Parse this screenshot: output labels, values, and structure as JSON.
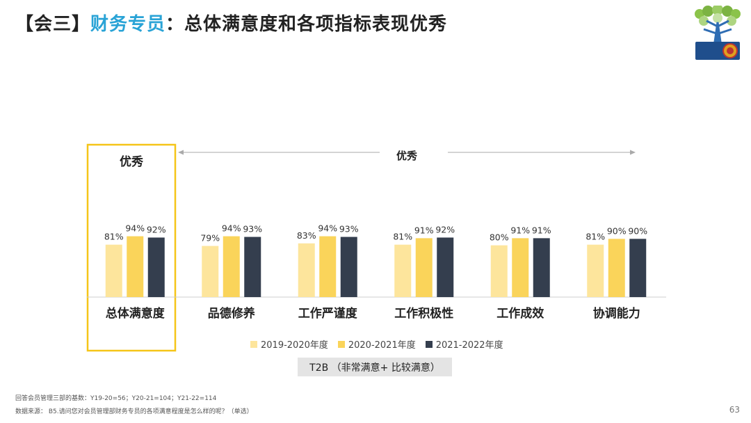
{
  "slide": {
    "title_prefix": "【会三】",
    "title_highlight": "财务专员",
    "title_rest": "：总体满意度和各项指标表现优秀",
    "page_number": "63"
  },
  "colors": {
    "title_highlight": "#29a3d6",
    "overall_box_border": "#f5c518",
    "t2b_bg": "#e4e4e4"
  },
  "annotations": {
    "overall_label": "优秀",
    "span_label": "优秀"
  },
  "t2b_label": "T2B （非常满意+ 比较满意）",
  "footnotes": {
    "base": "回答会员管理三部的基数：Y19-20=56；Y20-21=104；Y21-22=114",
    "source": "数据来源：  B5.请问您对会员管理部财务专员的各项满意程度是怎么样的呢？（单选）"
  },
  "chart_data": {
    "type": "bar",
    "categories": [
      "总体满意度",
      "品德修养",
      "工作严谨度",
      "工作积极性",
      "工作成效",
      "协调能力"
    ],
    "series": [
      {
        "name": "2019-2020年度",
        "color": "#fde59c",
        "values": [
          81,
          79,
          83,
          81,
          80,
          81
        ]
      },
      {
        "name": "2020-2021年度",
        "color": "#fad45a",
        "values": [
          94,
          94,
          94,
          91,
          91,
          90
        ]
      },
      {
        "name": "2021-2022年度",
        "color": "#343e4e",
        "values": [
          92,
          93,
          93,
          92,
          91,
          90
        ]
      }
    ],
    "value_suffix": "%",
    "ylim": [
      0,
      100
    ],
    "grid": false,
    "legend_position": "bottom"
  }
}
